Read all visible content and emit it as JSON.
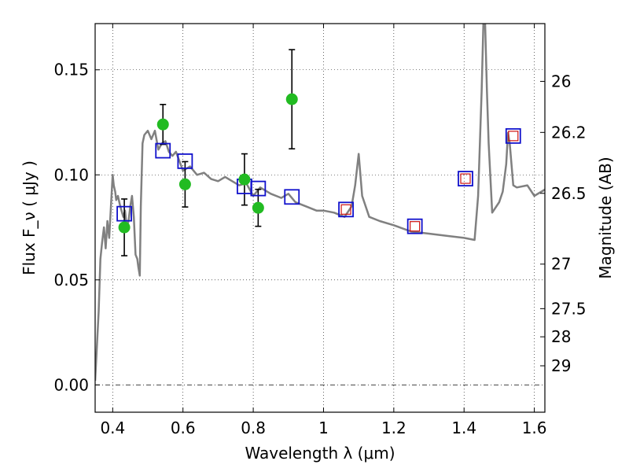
{
  "chart_data": {
    "type": "scatter",
    "xlabel": "Wavelength  λ (μm)",
    "ylabel_left": "Flux  F_ν  ( μJy )",
    "ylabel_right": "Magnitude (AB)",
    "xlim": [
      0.35,
      1.63
    ],
    "ylim": [
      -0.013,
      0.172
    ],
    "x_ticks": [
      0.4,
      0.6,
      0.8,
      1.0,
      1.2,
      1.4,
      1.6
    ],
    "x_tick_labels": [
      "0.4",
      "0.6",
      "0.8",
      "1",
      "1.2",
      "1.4",
      "1.6"
    ],
    "y_ticks": [
      0.0,
      0.05,
      0.1,
      0.15
    ],
    "y_tick_labels": [
      "0.00",
      "0.05",
      "0.10",
      "0.15"
    ],
    "right_ticks": [
      {
        "label": "26",
        "flux": 0.1445
      },
      {
        "label": "26.2",
        "flux": 0.1202
      },
      {
        "label": "26.5",
        "flux": 0.0912
      },
      {
        "label": "27",
        "flux": 0.0575
      },
      {
        "label": "27.5",
        "flux": 0.0363
      },
      {
        "label": "28",
        "flux": 0.0229
      },
      {
        "label": "29",
        "flux": 0.0091
      }
    ],
    "grid": true,
    "colors": {
      "model": "#808080",
      "observed": "#22bb22",
      "synthetic": "#1111cc",
      "synthetic_inner": "#cc1111",
      "errorbar": "#000000"
    },
    "series": [
      {
        "name": "model-sed",
        "style": "line",
        "x": [
          0.35,
          0.36,
          0.365,
          0.37,
          0.375,
          0.38,
          0.385,
          0.39,
          0.395,
          0.4,
          0.403,
          0.407,
          0.41,
          0.415,
          0.42,
          0.425,
          0.43,
          0.435,
          0.44,
          0.445,
          0.45,
          0.455,
          0.46,
          0.465,
          0.47,
          0.473,
          0.477,
          0.48,
          0.485,
          0.49,
          0.5,
          0.51,
          0.52,
          0.53,
          0.54,
          0.55,
          0.56,
          0.57,
          0.58,
          0.6,
          0.62,
          0.64,
          0.66,
          0.68,
          0.7,
          0.72,
          0.74,
          0.76,
          0.78,
          0.8,
          0.82,
          0.85,
          0.88,
          0.9,
          0.92,
          0.95,
          0.98,
          1.0,
          1.03,
          1.06,
          1.08,
          1.09,
          1.1,
          1.11,
          1.13,
          1.16,
          1.2,
          1.25,
          1.3,
          1.35,
          1.4,
          1.43,
          1.44,
          1.45,
          1.455,
          1.46,
          1.465,
          1.47,
          1.48,
          1.5,
          1.51,
          1.52,
          1.525,
          1.53,
          1.54,
          1.55,
          1.58,
          1.6,
          1.63
        ],
        "y": [
          0.002,
          0.035,
          0.06,
          0.068,
          0.075,
          0.065,
          0.078,
          0.07,
          0.085,
          0.1,
          0.095,
          0.092,
          0.088,
          0.09,
          0.086,
          0.083,
          0.08,
          0.083,
          0.075,
          0.078,
          0.085,
          0.09,
          0.08,
          0.062,
          0.06,
          0.056,
          0.052,
          0.085,
          0.115,
          0.119,
          0.121,
          0.117,
          0.121,
          0.112,
          0.115,
          0.116,
          0.111,
          0.109,
          0.111,
          0.102,
          0.104,
          0.1,
          0.101,
          0.098,
          0.097,
          0.099,
          0.097,
          0.095,
          0.096,
          0.09,
          0.094,
          0.091,
          0.089,
          0.091,
          0.087,
          0.085,
          0.083,
          0.083,
          0.082,
          0.08,
          0.085,
          0.095,
          0.11,
          0.09,
          0.08,
          0.078,
          0.076,
          0.073,
          0.072,
          0.071,
          0.07,
          0.069,
          0.09,
          0.14,
          0.172,
          0.172,
          0.14,
          0.115,
          0.082,
          0.087,
          0.092,
          0.105,
          0.12,
          0.115,
          0.095,
          0.094,
          0.095,
          0.09,
          0.093
        ]
      },
      {
        "name": "observed-photometry",
        "style": "points",
        "points": [
          {
            "x": 0.433,
            "y": 0.075,
            "err": 0.0135
          },
          {
            "x": 0.543,
            "y": 0.124,
            "err": 0.0095
          },
          {
            "x": 0.606,
            "y": 0.0955,
            "err": 0.0108
          },
          {
            "x": 0.775,
            "y": 0.0978,
            "err": 0.0122
          },
          {
            "x": 0.814,
            "y": 0.0843,
            "err": 0.0088
          },
          {
            "x": 0.91,
            "y": 0.136,
            "err": 0.0236
          }
        ]
      },
      {
        "name": "synthetic-photometry",
        "style": "squares",
        "points": [
          {
            "x": 0.433,
            "y": 0.0815,
            "inner": false
          },
          {
            "x": 0.543,
            "y": 0.1115,
            "inner": false
          },
          {
            "x": 0.606,
            "y": 0.1065,
            "inner": false
          },
          {
            "x": 0.775,
            "y": 0.0945,
            "inner": false
          },
          {
            "x": 0.814,
            "y": 0.0935,
            "inner": false
          },
          {
            "x": 0.91,
            "y": 0.0895,
            "inner": false
          },
          {
            "x": 1.064,
            "y": 0.0835,
            "inner": true
          },
          {
            "x": 1.26,
            "y": 0.0755,
            "inner": true
          },
          {
            "x": 1.404,
            "y": 0.0982,
            "inner": true
          },
          {
            "x": 1.54,
            "y": 0.1185,
            "inner": true
          }
        ]
      }
    ]
  }
}
